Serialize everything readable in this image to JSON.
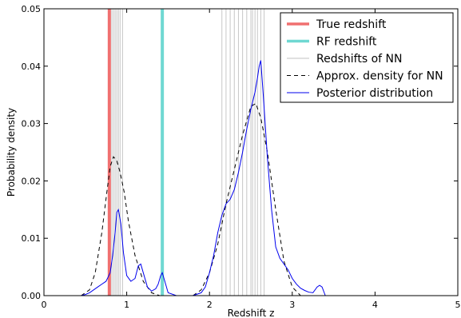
{
  "chart_data": {
    "type": "line",
    "xlabel": "Redshift z",
    "ylabel": "Probability density",
    "xlim": [
      0,
      5
    ],
    "ylim": [
      0,
      0.05
    ],
    "xticks": [
      "0",
      "1",
      "2",
      "3",
      "4",
      "5"
    ],
    "yticks": [
      "0.00",
      "0.01",
      "0.02",
      "0.03",
      "0.04",
      "0.05"
    ],
    "grid": false,
    "legend_position": "top-right",
    "true_redshift": {
      "name": "True redshift",
      "x": 0.79,
      "color": "#f07070"
    },
    "rf_redshift": {
      "name": "RF redshift",
      "x": 1.43,
      "color": "#6fd8d2"
    },
    "nn_redshifts": {
      "name": "Redshifts of NN",
      "color": "#999999",
      "x": [
        0.8,
        0.82,
        0.84,
        0.86,
        0.88,
        0.9,
        0.92,
        0.95,
        2.15,
        2.2,
        2.25,
        2.3,
        2.35,
        2.4,
        2.45,
        2.5,
        2.52,
        2.55,
        2.58,
        2.62,
        2.66
      ]
    },
    "approx_density": {
      "name": "Approx. density for NN",
      "color": "#000000",
      "style": "dashed",
      "x": [
        0.45,
        0.55,
        0.62,
        0.7,
        0.76,
        0.8,
        0.84,
        0.88,
        0.92,
        0.97,
        1.02,
        1.1,
        1.2,
        1.3,
        1.4,
        1.6,
        1.8,
        1.9,
        2.0,
        2.1,
        2.2,
        2.3,
        2.4,
        2.5,
        2.56,
        2.62,
        2.7,
        2.8,
        2.9,
        3.0,
        3.1
      ],
      "y": [
        0.0,
        0.001,
        0.004,
        0.011,
        0.018,
        0.0225,
        0.0242,
        0.0235,
        0.0215,
        0.018,
        0.013,
        0.007,
        0.0025,
        0.0005,
        0.0,
        0.0,
        0.0,
        0.001,
        0.004,
        0.009,
        0.016,
        0.022,
        0.028,
        0.033,
        0.0335,
        0.031,
        0.025,
        0.015,
        0.006,
        0.0015,
        0.0
      ]
    },
    "posterior": {
      "name": "Posterior distribution",
      "color": "#0000ee",
      "x": [
        0.45,
        0.5,
        0.55,
        0.6,
        0.65,
        0.7,
        0.75,
        0.8,
        0.83,
        0.86,
        0.88,
        0.9,
        0.93,
        0.96,
        1.0,
        1.05,
        1.1,
        1.14,
        1.17,
        1.2,
        1.25,
        1.3,
        1.35,
        1.38,
        1.41,
        1.43,
        1.46,
        1.5,
        1.6,
        1.7,
        1.8,
        1.9,
        1.95,
        2.0,
        2.05,
        2.1,
        2.15,
        2.2,
        2.25,
        2.3,
        2.35,
        2.4,
        2.45,
        2.5,
        2.55,
        2.58,
        2.6,
        2.62,
        2.65,
        2.7,
        2.75,
        2.8,
        2.85,
        2.9,
        2.95,
        3.0,
        3.05,
        3.1,
        3.15,
        3.2,
        3.25,
        3.3,
        3.33,
        3.36,
        3.4
      ],
      "y": [
        0.0,
        0.0002,
        0.0005,
        0.001,
        0.0015,
        0.002,
        0.0025,
        0.004,
        0.007,
        0.011,
        0.0145,
        0.015,
        0.0125,
        0.0075,
        0.0035,
        0.0025,
        0.003,
        0.0052,
        0.0055,
        0.004,
        0.0015,
        0.0008,
        0.0012,
        0.002,
        0.0035,
        0.004,
        0.0025,
        0.0005,
        0.0,
        0.0,
        0.0,
        0.0005,
        0.0015,
        0.004,
        0.007,
        0.011,
        0.014,
        0.016,
        0.0168,
        0.0185,
        0.0215,
        0.025,
        0.029,
        0.0325,
        0.0355,
        0.038,
        0.04,
        0.041,
        0.035,
        0.024,
        0.015,
        0.0085,
        0.0065,
        0.0055,
        0.0045,
        0.003,
        0.002,
        0.0013,
        0.0009,
        0.0006,
        0.0005,
        0.0015,
        0.0018,
        0.0015,
        0.0
      ]
    }
  }
}
